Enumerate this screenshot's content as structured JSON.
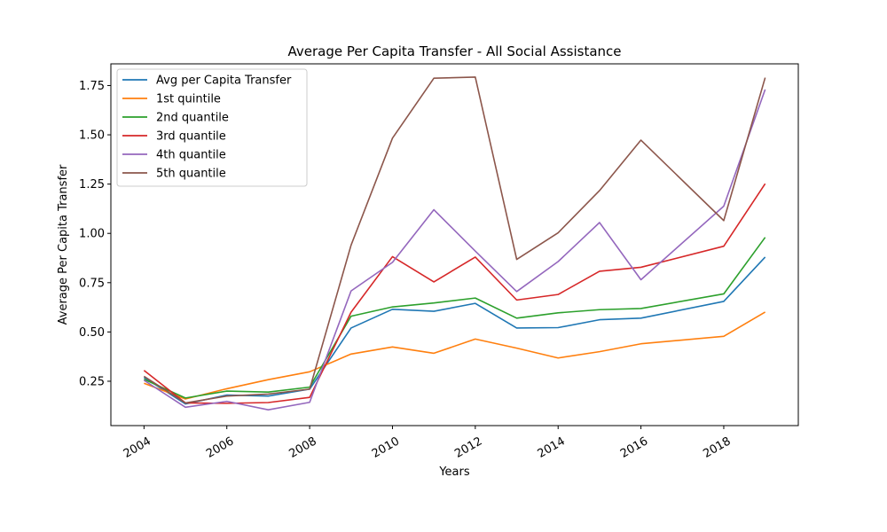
{
  "chart_data": {
    "type": "line",
    "title": "Average Per Capita Transfer - All Social Assistance",
    "xlabel": "Years",
    "ylabel": "Average Per Capita Transfer",
    "x": [
      2004,
      2005,
      2006,
      2007,
      2008,
      2009,
      2010,
      2011,
      2012,
      2013,
      2014,
      2015,
      2016,
      2018,
      2019
    ],
    "xlim": [
      2003.2,
      2019.8
    ],
    "ylim": [
      0.025,
      1.86
    ],
    "x_ticks": [
      2004,
      2006,
      2008,
      2010,
      2012,
      2014,
      2016,
      2018
    ],
    "x_tick_labels": [
      "2004",
      "2006",
      "2008",
      "2010",
      "2012",
      "2014",
      "2016",
      "2018"
    ],
    "y_ticks": [
      0.25,
      0.5,
      0.75,
      1.0,
      1.25,
      1.5,
      1.75
    ],
    "y_tick_labels": [
      "0.25",
      "0.50",
      "0.75",
      "1.00",
      "1.25",
      "1.50",
      "1.75"
    ],
    "grid": false,
    "legend_position": "top-left",
    "series": [
      {
        "name": "Avg per Capita Transfer",
        "color": "#1f77b4",
        "values": [
          0.27,
          0.135,
          0.18,
          0.175,
          0.21,
          0.52,
          0.615,
          0.605,
          0.645,
          0.52,
          0.522,
          0.562,
          0.57,
          0.655,
          0.88
        ]
      },
      {
        "name": "1st quintile",
        "color": "#ff7f0e",
        "values": [
          0.24,
          0.16,
          0.212,
          0.258,
          0.298,
          0.388,
          0.424,
          0.392,
          0.464,
          0.418,
          0.368,
          0.4,
          0.44,
          0.478,
          0.601
        ]
      },
      {
        "name": "2nd quantile",
        "color": "#2ca02c",
        "values": [
          0.26,
          0.165,
          0.2,
          0.195,
          0.22,
          0.58,
          0.627,
          0.647,
          0.672,
          0.57,
          0.597,
          0.613,
          0.619,
          0.693,
          0.98
        ]
      },
      {
        "name": "3rd quantile",
        "color": "#d62728",
        "values": [
          0.305,
          0.14,
          0.138,
          0.142,
          0.168,
          0.6,
          0.882,
          0.754,
          0.88,
          0.662,
          0.69,
          0.808,
          0.828,
          0.935,
          1.252
        ]
      },
      {
        "name": "4th quantile",
        "color": "#9467bd",
        "values": [
          0.255,
          0.118,
          0.148,
          0.105,
          0.143,
          0.708,
          0.853,
          1.12,
          0.91,
          0.705,
          0.857,
          1.055,
          0.765,
          1.138,
          1.73
        ]
      },
      {
        "name": "5th quantile",
        "color": "#8c564b",
        "values": [
          0.275,
          0.14,
          0.175,
          0.185,
          0.21,
          0.94,
          1.483,
          1.787,
          1.793,
          0.868,
          1.003,
          1.217,
          1.473,
          1.065,
          1.79
        ]
      }
    ]
  }
}
